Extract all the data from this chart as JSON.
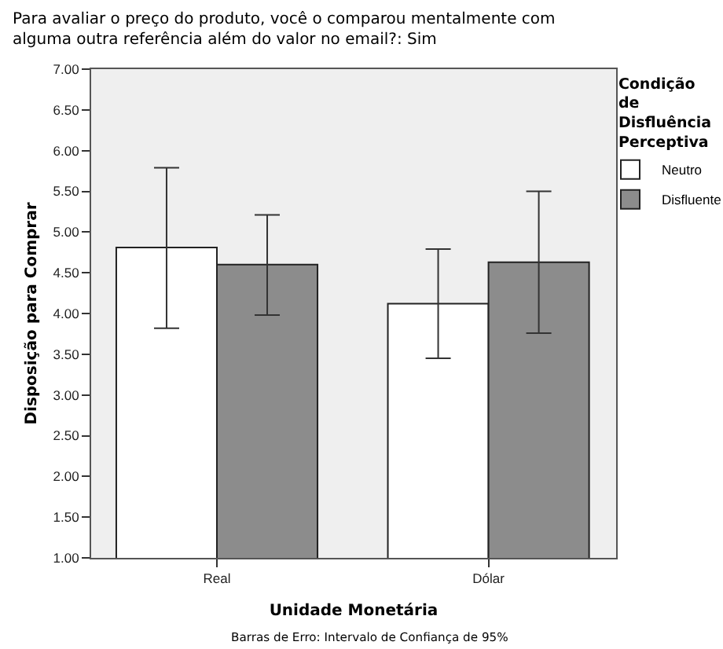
{
  "chart_data": {
    "type": "bar",
    "title": "Para avaliar o preço do produto, você o comparou mentalmente com alguma outra referência além do valor no email?: Sim",
    "xlabel": "Unidade Monetária",
    "ylabel": "Disposição para Comprar",
    "legend_title": "Condição de Disfluência Perceptiva",
    "annotations": [
      "Barras de Erro: Intervalo de Confiança de 95%"
    ],
    "categories": [
      "Real",
      "Dólar"
    ],
    "series": [
      {
        "name": "Neutro",
        "color": "#ffffff",
        "values": [
          4.81,
          4.12
        ],
        "errors": [
          [
            3.82,
            5.79
          ],
          [
            3.45,
            4.79
          ]
        ]
      },
      {
        "name": "Disfluente",
        "color": "#8c8c8c",
        "values": [
          4.6,
          4.63
        ],
        "errors": [
          [
            3.98,
            5.21
          ],
          [
            3.76,
            5.5
          ]
        ]
      }
    ],
    "ylim": [
      1,
      7
    ],
    "yticks": [
      {
        "value": 1,
        "label": "1.00"
      },
      {
        "value": 1.5,
        "label": "1.50"
      },
      {
        "value": 2,
        "label": "2.00"
      },
      {
        "value": 2.5,
        "label": "2.50"
      },
      {
        "value": 3,
        "label": "3.00"
      },
      {
        "value": 3.5,
        "label": "3.50"
      },
      {
        "value": 4,
        "label": "4.00"
      },
      {
        "value": 4.5,
        "label": "4.50"
      },
      {
        "value": 5,
        "label": "5.00"
      },
      {
        "value": 5.5,
        "label": "5.50"
      },
      {
        "value": 6,
        "label": "6.00"
      },
      {
        "value": 6.5,
        "label": "6.50"
      },
      {
        "value": 7,
        "label": "7.00"
      }
    ],
    "grid": false,
    "legend": "top right"
  }
}
